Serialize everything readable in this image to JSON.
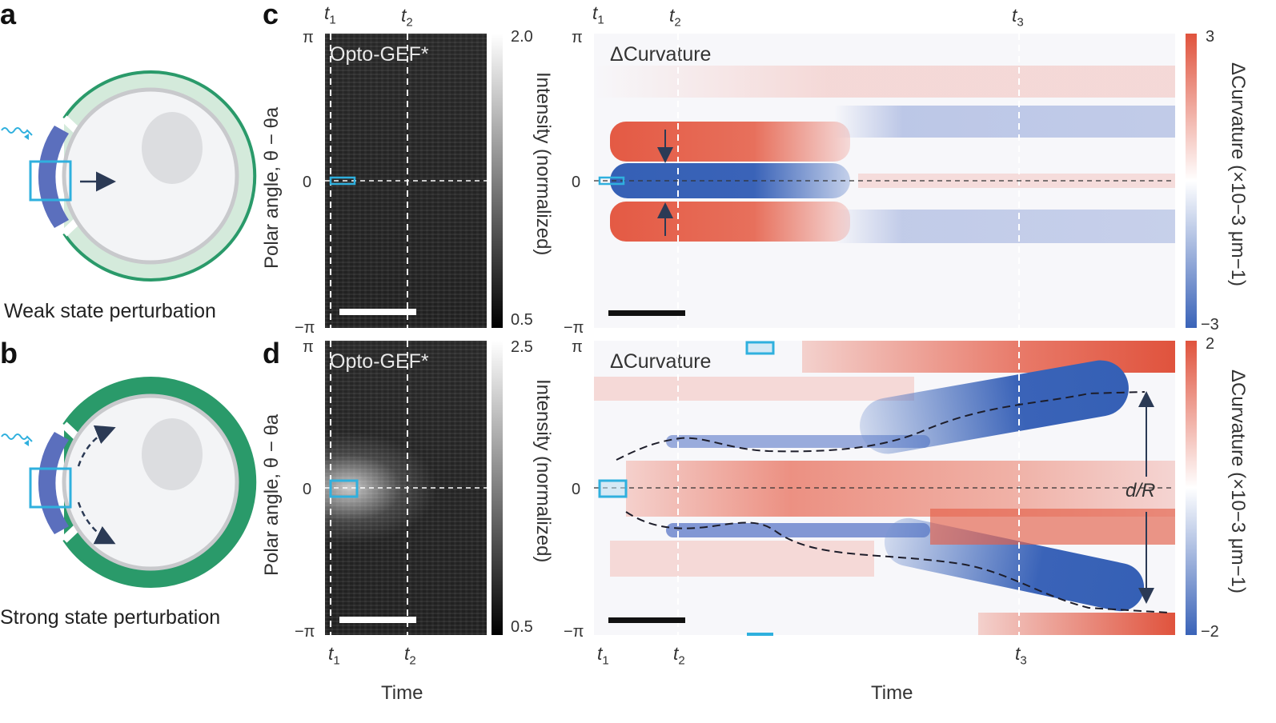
{
  "panels": {
    "a": {
      "letter": "a",
      "caption": "Weak state perturbation"
    },
    "b": {
      "letter": "b",
      "caption": "Strong state perturbation"
    },
    "c": {
      "letter": "c"
    },
    "d": {
      "letter": "d"
    }
  },
  "kymograph": {
    "label": "Opto-GEF*",
    "y_axis_title": "Polar angle, θ − θa",
    "y_ticks": [
      "π",
      "0",
      "−π"
    ],
    "x_axis_title": "Time",
    "colorbar_title": "Intensity (normalized)",
    "c_colorbar": {
      "max": "2.0",
      "min": "0.5"
    },
    "d_colorbar": {
      "max": "2.5",
      "min": "0.5"
    }
  },
  "curvature": {
    "label": "ΔCurvature",
    "y_ticks": [
      "π",
      "0",
      "−π"
    ],
    "x_axis_title": "Time",
    "colorbar_title": "ΔCurvature (×10−3 μm−1)",
    "c_colorbar": {
      "max": "3",
      "min": "−3"
    },
    "d_colorbar": {
      "max": "2",
      "min": "−2"
    },
    "annotation": "d/R"
  },
  "time_marks": {
    "t1": "t",
    "t2": "t",
    "t3": "t",
    "s1": "1",
    "s2": "2",
    "s3": "3"
  },
  "colors": {
    "red": "#e0533d",
    "blue": "#3a63b8",
    "cyan": "#2fb0de",
    "green_dark": "#2a9a6a",
    "green_light": "#d4eadb",
    "membrane": "#5b6fbd"
  }
}
